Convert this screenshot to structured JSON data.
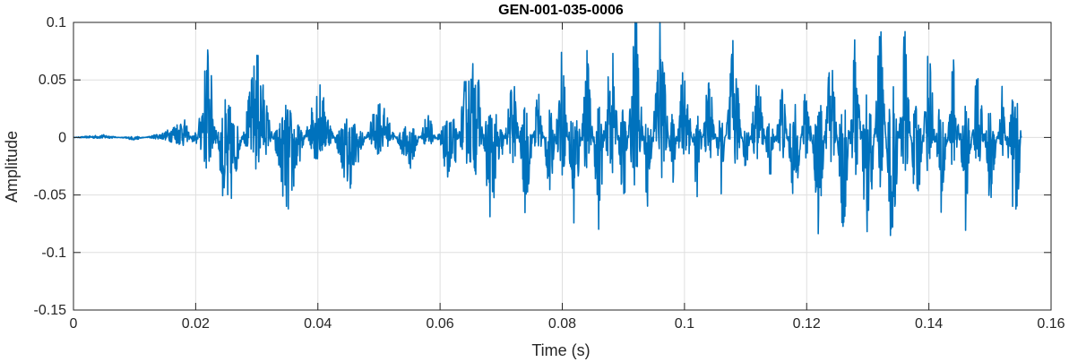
{
  "chart_data": {
    "type": "line",
    "title": "GEN-001-035-0006",
    "xlabel": "Time (s)",
    "ylabel": "Amplitude",
    "xlim": [
      0,
      0.16
    ],
    "ylim": [
      -0.15,
      0.1
    ],
    "x_ticks": [
      0,
      0.02,
      0.04,
      0.06,
      0.08,
      0.1,
      0.12,
      0.14,
      0.16
    ],
    "x_tick_labels": [
      "0",
      "0.02",
      "0.04",
      "0.06",
      "0.08",
      "0.1",
      "0.12",
      "0.14",
      "0.16"
    ],
    "y_ticks": [
      -0.15,
      -0.1,
      -0.05,
      0,
      0.05,
      0.1
    ],
    "y_tick_labels": [
      "-0.15",
      "-0.1",
      "-0.05",
      "0",
      "0.05",
      "0.1"
    ],
    "grid": true,
    "series_color": "#0072BD",
    "series": [
      {
        "x": [
          0,
          0.005,
          0.01,
          0.015,
          0.018,
          0.02,
          0.022,
          0.025,
          0.03,
          0.035,
          0.04,
          0.045,
          0.05,
          0.055,
          0.058,
          0.06,
          0.062,
          0.064,
          0.066,
          0.068,
          0.07,
          0.072,
          0.074,
          0.076,
          0.078,
          0.08,
          0.082,
          0.084,
          0.086,
          0.088,
          0.09,
          0.092,
          0.094,
          0.096,
          0.098,
          0.1,
          0.102,
          0.104,
          0.106,
          0.108,
          0.11,
          0.112,
          0.114,
          0.116,
          0.118,
          0.12,
          0.122,
          0.124,
          0.126,
          0.128,
          0.13,
          0.132,
          0.134,
          0.136,
          0.138,
          0.14,
          0.142,
          0.144,
          0.146,
          0.148,
          0.15,
          0.152,
          0.154,
          0.1552
        ],
        "y": [
          0.0,
          0.002,
          -0.002,
          0.004,
          0.015,
          -0.01,
          0.07,
          -0.07,
          0.065,
          -0.06,
          0.045,
          -0.04,
          0.03,
          -0.025,
          0.02,
          -0.01,
          -0.04,
          0.04,
          0.06,
          -0.06,
          -0.02,
          0.05,
          -0.06,
          0.04,
          -0.05,
          0.07,
          -0.08,
          0.07,
          -0.07,
          0.08,
          -0.06,
          0.095,
          -0.06,
          0.095,
          -0.04,
          0.07,
          -0.045,
          0.05,
          -0.04,
          0.075,
          -0.03,
          0.05,
          -0.035,
          0.045,
          -0.06,
          0.05,
          -0.075,
          0.08,
          -0.085,
          0.085,
          -0.11,
          0.095,
          -0.1,
          0.085,
          -0.075,
          0.075,
          -0.07,
          0.06,
          -0.065,
          0.06,
          -0.055,
          0.04,
          -0.09,
          0.0
        ]
      }
    ]
  }
}
